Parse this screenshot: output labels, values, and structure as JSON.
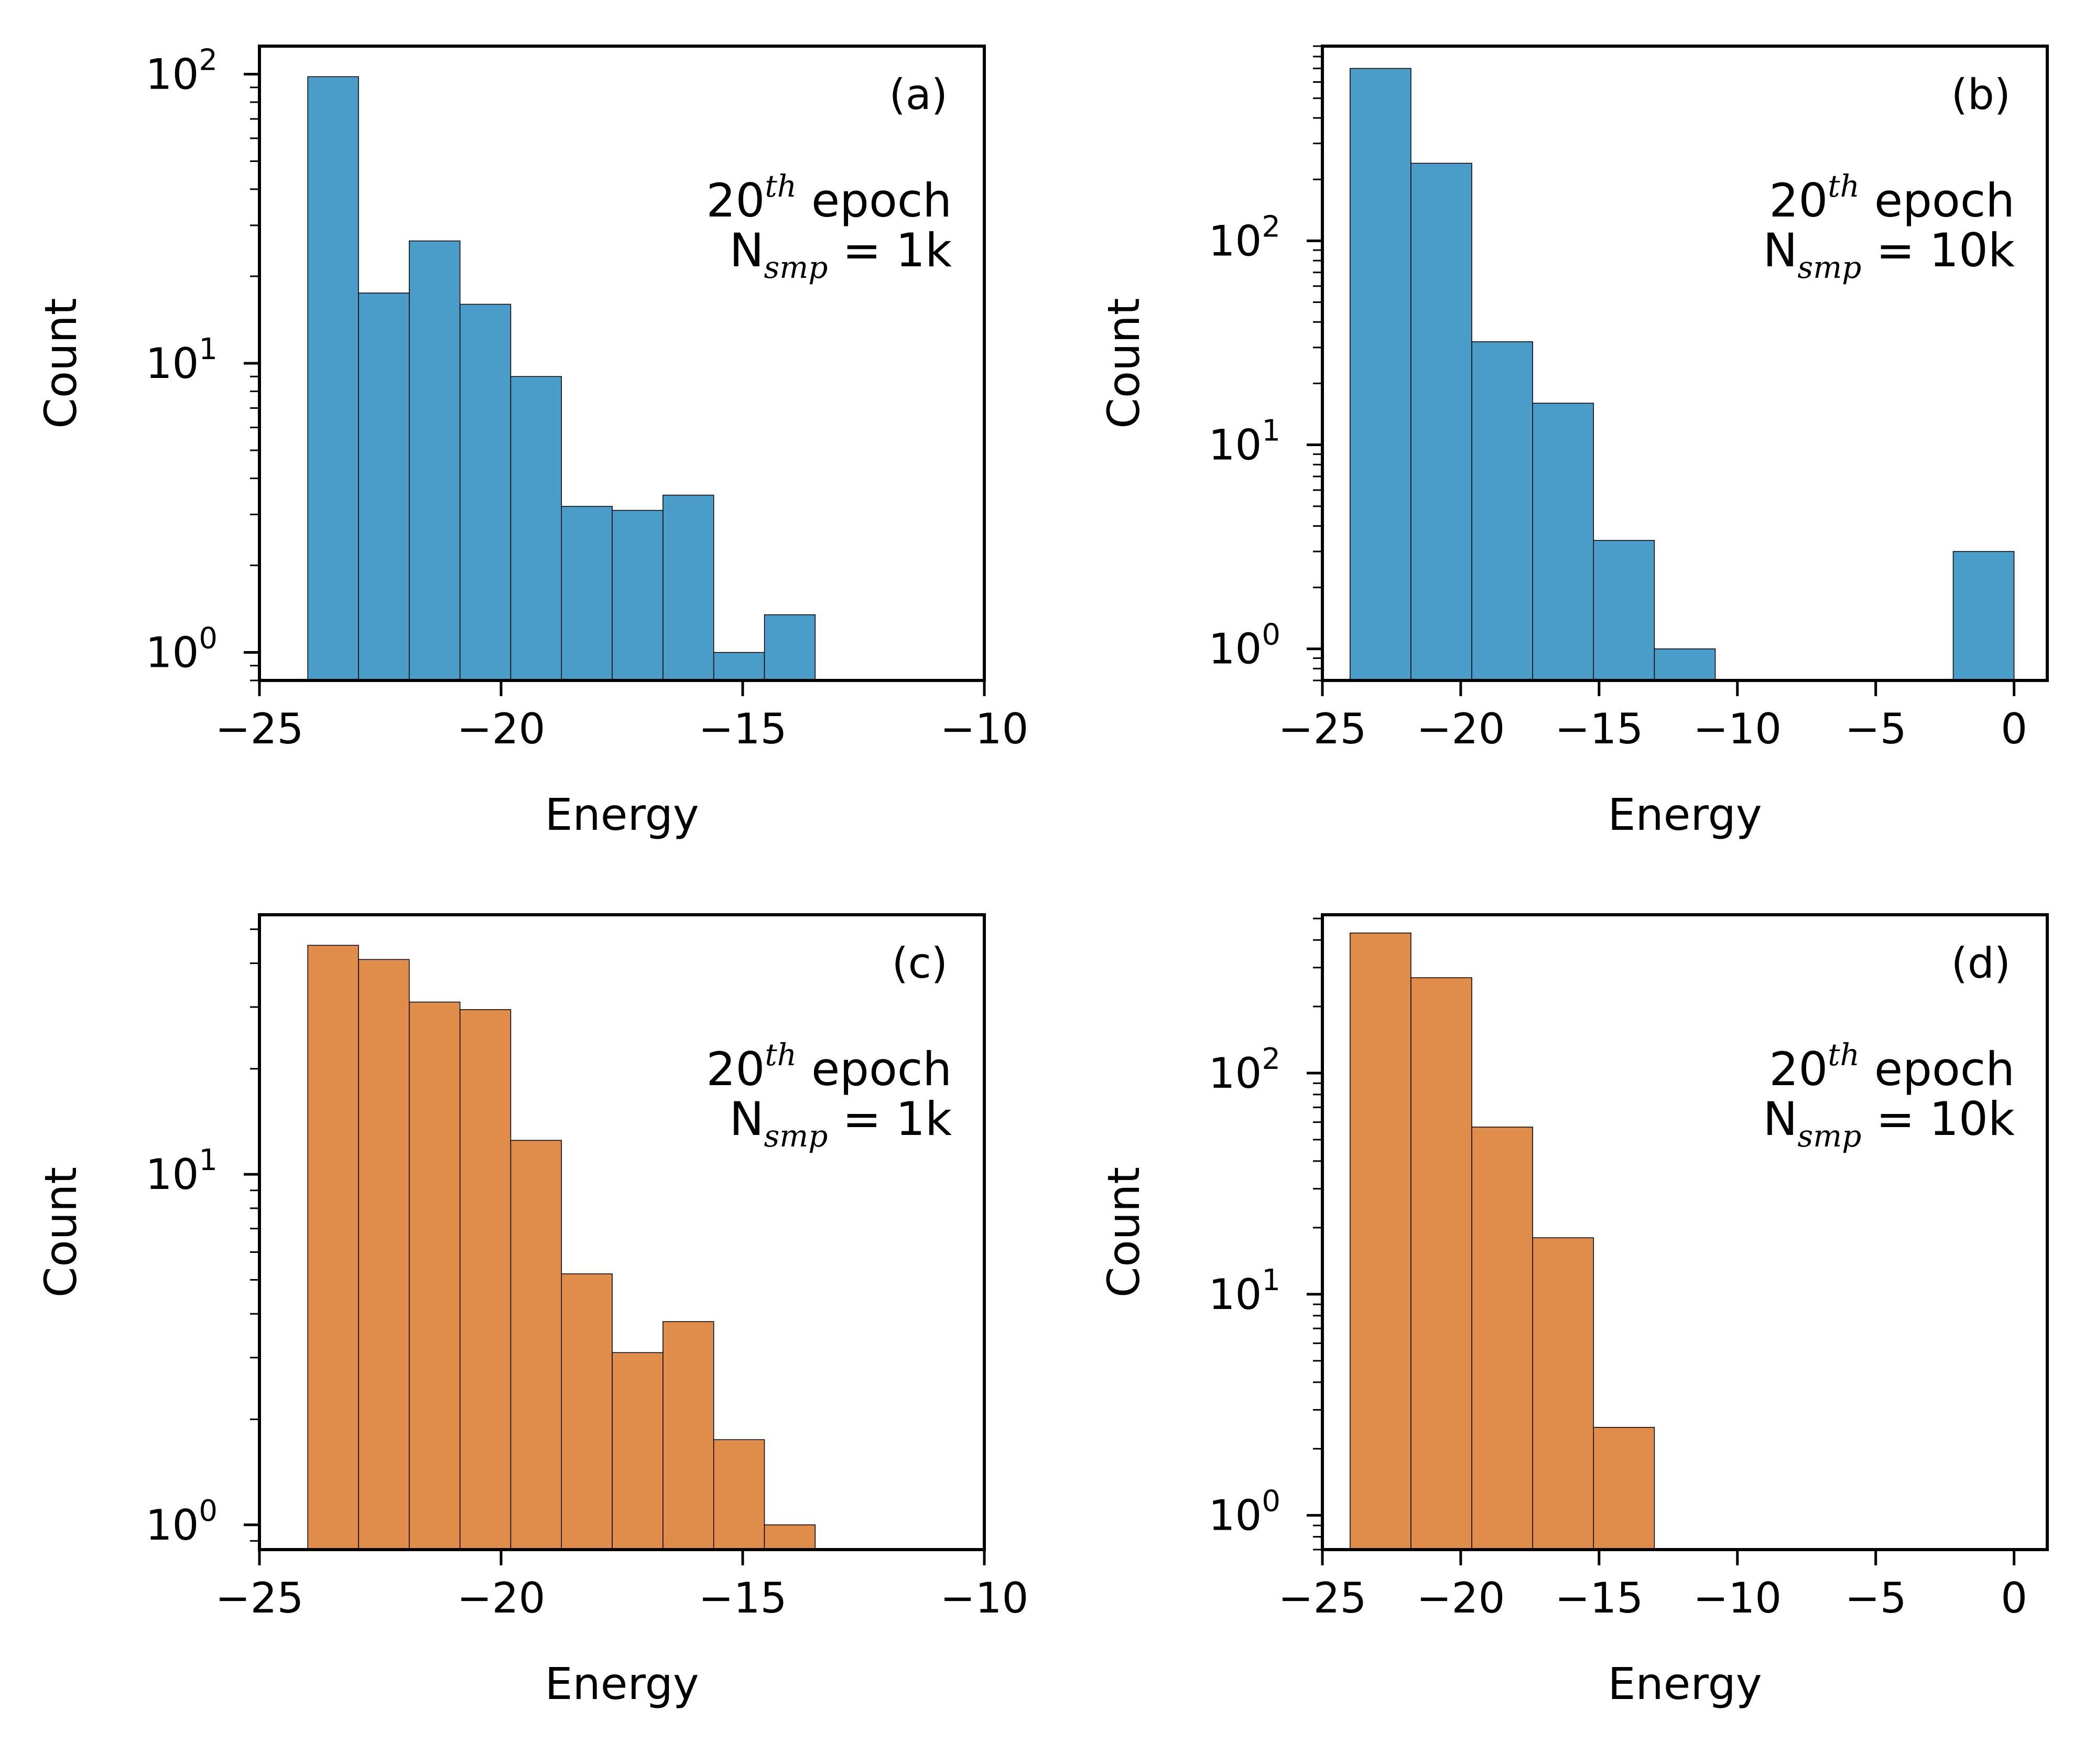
{
  "figure": {
    "colors": {
      "blue": "#4a9cc9",
      "orange": "#e08c4b"
    }
  },
  "chart_data": [
    {
      "id": "a",
      "type": "bar",
      "panel_label": "(a)",
      "annotation": {
        "line1_base": "20",
        "line1_sup": "th",
        "line1_rest": " epoch",
        "line2_base": "N",
        "line2_sub": "smp",
        "line2_rest": " = 1k"
      },
      "xlabel": "Energy",
      "ylabel": "Count",
      "yscale": "log",
      "xlim": [
        -25,
        -10
      ],
      "ylim": [
        0.8,
        125
      ],
      "xticks": [
        -25,
        -20,
        -15,
        -10
      ],
      "xtick_labels": [
        "−25",
        "−20",
        "−15",
        "−10"
      ],
      "yticks_major": [
        1,
        10,
        100
      ],
      "ytick_labels": [
        {
          "base": "10",
          "exp": "0"
        },
        {
          "base": "10",
          "exp": "1"
        },
        {
          "base": "10",
          "exp": "2"
        }
      ],
      "color": "#4a9cc9",
      "bins": [
        {
          "x0": -24.0,
          "x1": -22.95,
          "count": 98
        },
        {
          "x0": -22.95,
          "x1": -21.9,
          "count": 17.5
        },
        {
          "x0": -21.9,
          "x1": -20.85,
          "count": 26.5
        },
        {
          "x0": -20.85,
          "x1": -19.8,
          "count": 16
        },
        {
          "x0": -19.8,
          "x1": -18.75,
          "count": 9
        },
        {
          "x0": -18.75,
          "x1": -17.7,
          "count": 3.2
        },
        {
          "x0": -17.7,
          "x1": -16.65,
          "count": 3.1
        },
        {
          "x0": -16.65,
          "x1": -15.6,
          "count": 3.5
        },
        {
          "x0": -15.6,
          "x1": -14.55,
          "count": 1
        },
        {
          "x0": -14.55,
          "x1": -13.5,
          "count": 1.35
        }
      ]
    },
    {
      "id": "b",
      "type": "bar",
      "panel_label": "(b)",
      "annotation": {
        "line1_base": "20",
        "line1_sup": "th",
        "line1_rest": " epoch",
        "line2_base": "N",
        "line2_sub": "smp",
        "line2_rest": " = 10k"
      },
      "xlabel": "Energy",
      "ylabel": "Count",
      "yscale": "log",
      "xlim": [
        -25,
        1.2
      ],
      "ylim": [
        0.7,
        900
      ],
      "xticks": [
        -25,
        -20,
        -15,
        -10,
        -5,
        0
      ],
      "xtick_labels": [
        "−25",
        "−20",
        "−15",
        "−10",
        "−5",
        "0"
      ],
      "yticks_major": [
        1,
        10,
        100
      ],
      "ytick_labels": [
        {
          "base": "10",
          "exp": "0"
        },
        {
          "base": "10",
          "exp": "1"
        },
        {
          "base": "10",
          "exp": "2"
        }
      ],
      "color": "#4a9cc9",
      "bins": [
        {
          "x0": -24.0,
          "x1": -21.8,
          "count": 700
        },
        {
          "x0": -21.8,
          "x1": -19.6,
          "count": 240
        },
        {
          "x0": -19.6,
          "x1": -17.4,
          "count": 32
        },
        {
          "x0": -17.4,
          "x1": -15.2,
          "count": 16
        },
        {
          "x0": -15.2,
          "x1": -13.0,
          "count": 3.4
        },
        {
          "x0": -13.0,
          "x1": -10.8,
          "count": 1
        },
        {
          "x0": -2.2,
          "x1": 0.0,
          "count": 3
        }
      ]
    },
    {
      "id": "c",
      "type": "bar",
      "panel_label": "(c)",
      "annotation": {
        "line1_base": "20",
        "line1_sup": "th",
        "line1_rest": " epoch",
        "line2_base": "N",
        "line2_sub": "smp",
        "line2_rest": " = 1k"
      },
      "xlabel": "Energy",
      "ylabel": "Count",
      "yscale": "log",
      "xlim": [
        -25,
        -10
      ],
      "ylim": [
        0.85,
        55
      ],
      "xticks": [
        -25,
        -20,
        -15,
        -10
      ],
      "xtick_labels": [
        "−25",
        "−20",
        "−15",
        "−10"
      ],
      "yticks_major": [
        1,
        10
      ],
      "ytick_labels": [
        {
          "base": "10",
          "exp": "0"
        },
        {
          "base": "10",
          "exp": "1"
        }
      ],
      "color": "#e08c4b",
      "bins": [
        {
          "x0": -24.0,
          "x1": -22.95,
          "count": 45
        },
        {
          "x0": -22.95,
          "x1": -21.9,
          "count": 41
        },
        {
          "x0": -21.9,
          "x1": -20.85,
          "count": 31
        },
        {
          "x0": -20.85,
          "x1": -19.8,
          "count": 29.5
        },
        {
          "x0": -19.8,
          "x1": -18.75,
          "count": 12.5
        },
        {
          "x0": -18.75,
          "x1": -17.7,
          "count": 5.2
        },
        {
          "x0": -17.7,
          "x1": -16.65,
          "count": 3.1
        },
        {
          "x0": -16.65,
          "x1": -15.6,
          "count": 3.8
        },
        {
          "x0": -15.6,
          "x1": -14.55,
          "count": 1.75
        },
        {
          "x0": -14.55,
          "x1": -13.5,
          "count": 1
        }
      ]
    },
    {
      "id": "d",
      "type": "bar",
      "panel_label": "(d)",
      "annotation": {
        "line1_base": "20",
        "line1_sup": "th",
        "line1_rest": " epoch",
        "line2_base": "N",
        "line2_sub": "smp",
        "line2_rest": " = 10k"
      },
      "xlabel": "Energy",
      "ylabel": "Count",
      "yscale": "log",
      "xlim": [
        -25,
        1.2
      ],
      "ylim": [
        0.7,
        520
      ],
      "xticks": [
        -25,
        -20,
        -15,
        -10,
        -5,
        0
      ],
      "xtick_labels": [
        "−25",
        "−20",
        "−15",
        "−10",
        "−5",
        "0"
      ],
      "yticks_major": [
        1,
        10,
        100
      ],
      "ytick_labels": [
        {
          "base": "10",
          "exp": "0"
        },
        {
          "base": "10",
          "exp": "1"
        },
        {
          "base": "10",
          "exp": "2"
        }
      ],
      "color": "#e08c4b",
      "bins": [
        {
          "x0": -24.0,
          "x1": -21.8,
          "count": 430
        },
        {
          "x0": -21.8,
          "x1": -19.6,
          "count": 270
        },
        {
          "x0": -19.6,
          "x1": -17.4,
          "count": 57
        },
        {
          "x0": -17.4,
          "x1": -15.2,
          "count": 18
        },
        {
          "x0": -15.2,
          "x1": -13.0,
          "count": 2.5
        }
      ]
    }
  ]
}
